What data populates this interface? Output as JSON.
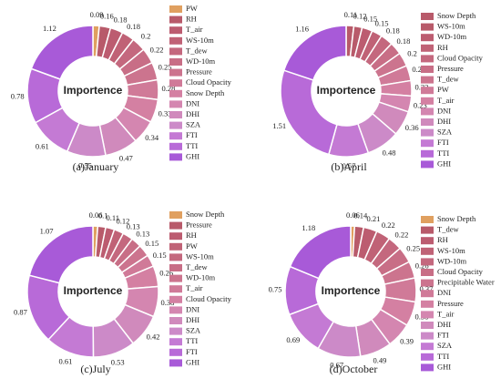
{
  "chart_data": [
    {
      "type": "pie",
      "title": "(a)January",
      "center_label": "Importence",
      "categories": [
        "PW",
        "RH",
        "T_air",
        "WS-10m",
        "T_dew",
        "WD-10m",
        "Pressure",
        "Cloud Opacity",
        "Snow Depth",
        "DNI",
        "DHI",
        "SZA",
        "FTI",
        "TTI",
        "GHI"
      ],
      "values": [
        0.09,
        0.16,
        0.18,
        0.18,
        0.2,
        0.22,
        0.25,
        0.28,
        0.33,
        0.34,
        0.47,
        0.55,
        0.61,
        0.78,
        1.12
      ],
      "colors": [
        "#e0a060",
        "#b85a6a",
        "#bc5c70",
        "#c06276",
        "#c4687e",
        "#c86e86",
        "#cc748e",
        "#d07a98",
        "#d480a2",
        "#d486b0",
        "#d08abc",
        "#cc8ac8",
        "#c47ad4",
        "#b86ad8",
        "#a85ad8"
      ]
    },
    {
      "type": "pie",
      "title": "(b)April",
      "center_label": "Importence",
      "categories": [
        "Snow Depth",
        "WS-10m",
        "WD-10m",
        "RH",
        "Cloud Opacity",
        "Pressure",
        "T_dew",
        "PW",
        "T_air",
        "DNI",
        "DHI",
        "SZA",
        "FTI",
        "TTI",
        "GHI"
      ],
      "values": [
        0.11,
        0.12,
        0.15,
        0.15,
        0.18,
        0.18,
        0.2,
        0.22,
        0.22,
        0.23,
        0.36,
        0.48,
        0.57,
        1.51,
        1.16
      ],
      "colors": [
        "#b85a6a",
        "#b85a6a",
        "#bc5c70",
        "#c06276",
        "#c4687e",
        "#c86e86",
        "#cc748e",
        "#d07a98",
        "#d480a2",
        "#d486b0",
        "#d08abc",
        "#cc8ac8",
        "#c47ad4",
        "#b86ad8",
        "#a85ad8"
      ]
    },
    {
      "type": "pie",
      "title": "(c)July",
      "center_label": "Importence",
      "categories": [
        "Snow Depth",
        "Pressure",
        "RH",
        "PW",
        "WS-10m",
        "T_dew",
        "WD-10m",
        "T_air",
        "Cloud Opacity",
        "DNI",
        "DHI",
        "SZA",
        "TTI",
        "FTI",
        "GHI"
      ],
      "values": [
        0.06,
        0.1,
        0.11,
        0.12,
        0.13,
        0.13,
        0.15,
        0.15,
        0.26,
        0.38,
        0.42,
        0.53,
        0.61,
        0.87,
        1.07
      ],
      "colors": [
        "#e0a060",
        "#b85a6a",
        "#bc5c70",
        "#c06276",
        "#c4687e",
        "#c86e86",
        "#cc748e",
        "#d07a98",
        "#d480a2",
        "#d486b0",
        "#d08abc",
        "#cc8ac8",
        "#c47ad4",
        "#b86ad8",
        "#a85ad8"
      ]
    },
    {
      "type": "pie",
      "title": "(d)October",
      "center_label": "Importence",
      "categories": [
        "Snow Depth",
        "T_dew",
        "RH",
        "WS-10m",
        "WD-10m",
        "Cloud Opacity",
        "Precipitable Water",
        "DNI",
        "Pressure",
        "T_air",
        "DHI",
        "FTI",
        "SZA",
        "TTI",
        "GHI"
      ],
      "values": [
        0.06,
        0.14,
        0.21,
        0.22,
        0.22,
        0.25,
        0.26,
        0.37,
        0.38,
        0.39,
        0.49,
        0.67,
        0.69,
        0.75,
        1.18
      ],
      "colors": [
        "#e0a060",
        "#b85a6a",
        "#bc5c70",
        "#c06276",
        "#c4687e",
        "#c86e86",
        "#cc748e",
        "#d07a98",
        "#d480a2",
        "#d486b0",
        "#d08abc",
        "#cc8ac8",
        "#c47ad4",
        "#b86ad8",
        "#a85ad8"
      ]
    }
  ]
}
